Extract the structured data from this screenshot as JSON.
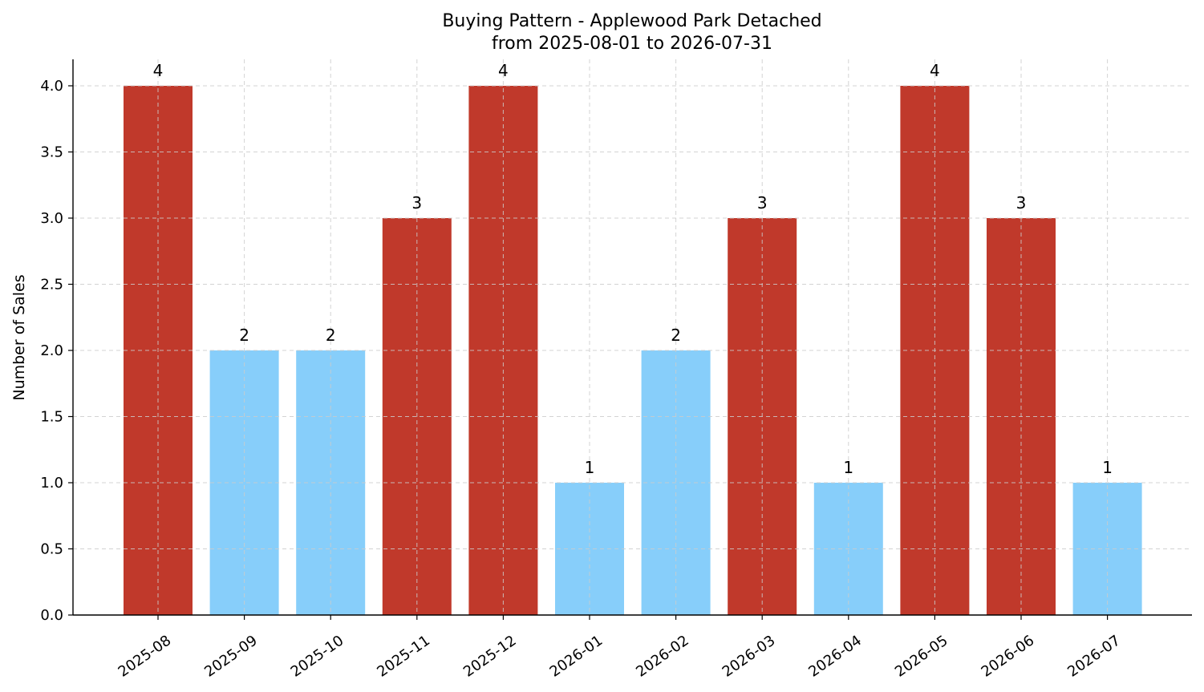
{
  "chart_data": {
    "type": "bar",
    "title": "Buying Pattern - Applewood Park Detached",
    "subtitle": "from 2025-08-01 to 2026-07-31",
    "xlabel": "",
    "ylabel": "Number of Sales",
    "categories": [
      "2025-08",
      "2025-09",
      "2025-10",
      "2025-11",
      "2025-12",
      "2026-01",
      "2026-02",
      "2026-03",
      "2026-04",
      "2026-05",
      "2026-06",
      "2026-07"
    ],
    "values": [
      4,
      2,
      2,
      3,
      4,
      1,
      2,
      3,
      1,
      4,
      3,
      1
    ],
    "data_labels": [
      "4",
      "2",
      "2",
      "3",
      "4",
      "1",
      "2",
      "3",
      "1",
      "4",
      "3",
      "1"
    ],
    "ylim": [
      0,
      4.2
    ],
    "yticks": [
      "0.0",
      "0.5",
      "1.0",
      "1.5",
      "2.0",
      "2.5",
      "3.0",
      "3.5",
      "4.0"
    ],
    "grid": true,
    "colors": {
      "high": "#c0392b",
      "low": "#87cefa"
    }
  }
}
